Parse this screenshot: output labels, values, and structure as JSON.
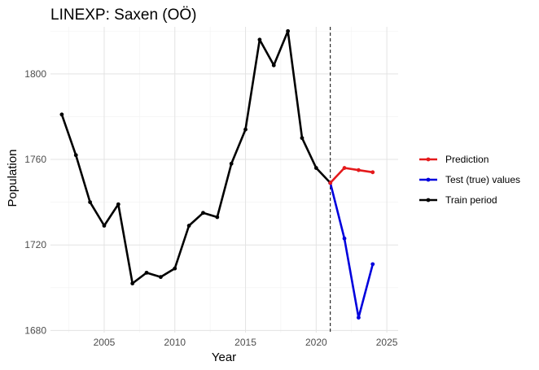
{
  "chart_data": {
    "type": "line",
    "title": "LINEXP: Saxen (OÖ)",
    "xlabel": "Year",
    "ylabel": "Population",
    "xlim": [
      2001.2,
      2025.8
    ],
    "ylim": [
      1679,
      1822
    ],
    "x_ticks": [
      2005,
      2010,
      2015,
      2020,
      2025
    ],
    "y_ticks": [
      1680,
      1720,
      1760,
      1800
    ],
    "grid": true,
    "legend_position": "right",
    "cutoff_line": {
      "x": 2021,
      "style": "dashed"
    },
    "series": [
      {
        "name": "Prediction",
        "color": "#e41a1c",
        "points": [
          [
            2021,
            1749
          ],
          [
            2022,
            1756
          ],
          [
            2023,
            1755
          ],
          [
            2024,
            1754
          ]
        ]
      },
      {
        "name": "Test (true) values",
        "color": "#0000dd",
        "points": [
          [
            2021,
            1749
          ],
          [
            2022,
            1723
          ],
          [
            2023,
            1686
          ],
          [
            2024,
            1711
          ]
        ]
      },
      {
        "name": "Train period",
        "color": "#000000",
        "points": [
          [
            2002,
            1781
          ],
          [
            2003,
            1762
          ],
          [
            2004,
            1740
          ],
          [
            2005,
            1729
          ],
          [
            2006,
            1739
          ],
          [
            2007,
            1702
          ],
          [
            2008,
            1707
          ],
          [
            2009,
            1705
          ],
          [
            2010,
            1709
          ],
          [
            2011,
            1729
          ],
          [
            2012,
            1735
          ],
          [
            2013,
            1733
          ],
          [
            2014,
            1758
          ],
          [
            2015,
            1774
          ],
          [
            2016,
            1816
          ],
          [
            2017,
            1804
          ],
          [
            2018,
            1820
          ],
          [
            2019,
            1770
          ],
          [
            2020,
            1756
          ],
          [
            2021,
            1749
          ]
        ]
      }
    ]
  }
}
